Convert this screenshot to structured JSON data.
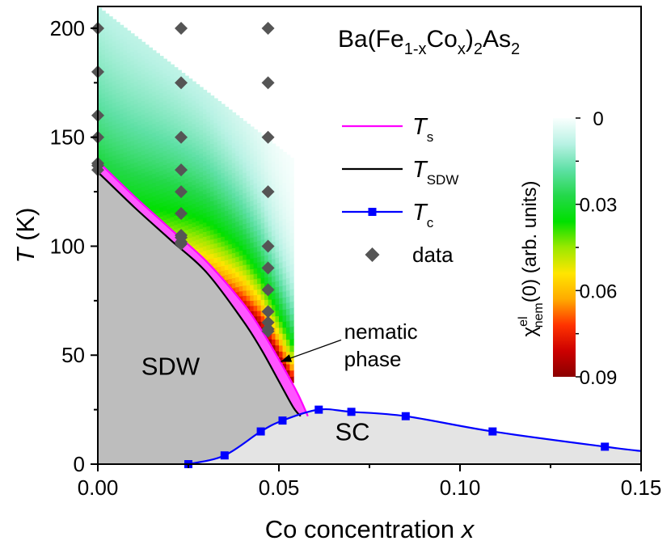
{
  "chart_data": {
    "type": "scatter",
    "title_parts": [
      "Ba(Fe",
      "1-x",
      "Co",
      "x",
      ")",
      "2",
      "As",
      "2"
    ],
    "xlabel": "Co concentration ",
    "xlabel_var": "x",
    "ylabel_var": "T",
    "ylabel_unit": " (K)",
    "xlim": [
      0,
      0.15
    ],
    "ylim": [
      0,
      210
    ],
    "xticks": [
      0,
      0.05,
      0.1,
      0.15
    ],
    "xtick_labels": [
      "0.00",
      "0.05",
      "0.10",
      "0.15"
    ],
    "yticks": [
      0,
      50,
      100,
      150,
      200
    ],
    "ytick_labels": [
      "0",
      "50",
      "100",
      "150",
      "200"
    ],
    "regions": [
      {
        "label": "SDW",
        "x": 0.012,
        "y": 41
      },
      {
        "label": "SC",
        "x": 0.0655,
        "y": 11
      }
    ],
    "annotation": {
      "lines": [
        "nematic",
        "phase"
      ],
      "text_x": 0.068,
      "text_y": 56,
      "arrow_from": [
        0.0672,
        57
      ],
      "arrow_to": [
        0.0505,
        47
      ]
    },
    "legend": {
      "position": "center-right",
      "items": [
        {
          "kind": "line",
          "var": "T",
          "sub": "s",
          "color": "#ff00ff"
        },
        {
          "kind": "line",
          "var": "T",
          "sub": "SDW",
          "color": "#000000"
        },
        {
          "kind": "line-marker",
          "var": "T",
          "sub": "c",
          "color": "#0000ff"
        },
        {
          "kind": "marker",
          "label": "data",
          "color": "#555555"
        }
      ]
    },
    "series": [
      {
        "name": "Ts",
        "color": "#ff00ff",
        "x": [
          0,
          0.01,
          0.02,
          0.03,
          0.04,
          0.045,
          0.05,
          0.055,
          0.058
        ],
        "y": [
          139,
          123,
          108,
          93,
          74,
          62,
          48,
          33,
          22
        ]
      },
      {
        "name": "TSDW",
        "color": "#000000",
        "x": [
          0,
          0.01,
          0.02,
          0.03,
          0.04,
          0.045,
          0.05,
          0.054,
          0.056
        ],
        "y": [
          134,
          118,
          103,
          88,
          66,
          53,
          38,
          26,
          22
        ]
      },
      {
        "name": "Tc",
        "color": "#0000ff",
        "x": [
          0.025,
          0.035,
          0.045,
          0.051,
          0.061,
          0.07,
          0.085,
          0.109,
          0.14,
          0.15
        ],
        "y": [
          0,
          4,
          15,
          20,
          25,
          24,
          22,
          15,
          8,
          6
        ]
      },
      {
        "name": "data",
        "color": "#555555",
        "x": [
          0,
          0,
          0,
          0,
          0,
          0,
          0,
          0.023,
          0.023,
          0.023,
          0.023,
          0.023,
          0.023,
          0.023,
          0.023,
          0.023,
          0.023,
          0.047,
          0.047,
          0.047,
          0.047,
          0.047,
          0.047,
          0.047,
          0.047,
          0.047,
          0.047,
          0.047
        ],
        "y": [
          200,
          180,
          160,
          150,
          138,
          137,
          135,
          200,
          175,
          150,
          135,
          125,
          115,
          105,
          104,
          102,
          101,
          200,
          175,
          150,
          125,
          100,
          90,
          80,
          70,
          65,
          62,
          61
        ]
      }
    ],
    "heatmap": {
      "colorbar_label_main": "χ",
      "colorbar_label_sup": "el",
      "colorbar_label_sub": "nem",
      "colorbar_label_rest": "(0) (arb. units)",
      "colorbar_ticks": [
        "0",
        "0.03",
        "0.06",
        "0.09"
      ],
      "colorbar_range": [
        0,
        0.09
      ],
      "colorbar_direction": "reversed",
      "colormap": [
        "#fafffe",
        "#b8f2e4",
        "#5ee0a5",
        "#24d84a",
        "#00e000",
        "#9be800",
        "#ffe600",
        "#ffaa00",
        "#ff3300",
        "#cc0000",
        "#8b0000"
      ],
      "x_extent": [
        0,
        0.054
      ],
      "upper_edge": {
        "x": [
          0,
          0.054
        ],
        "y": [
          210,
          140
        ]
      }
    }
  }
}
